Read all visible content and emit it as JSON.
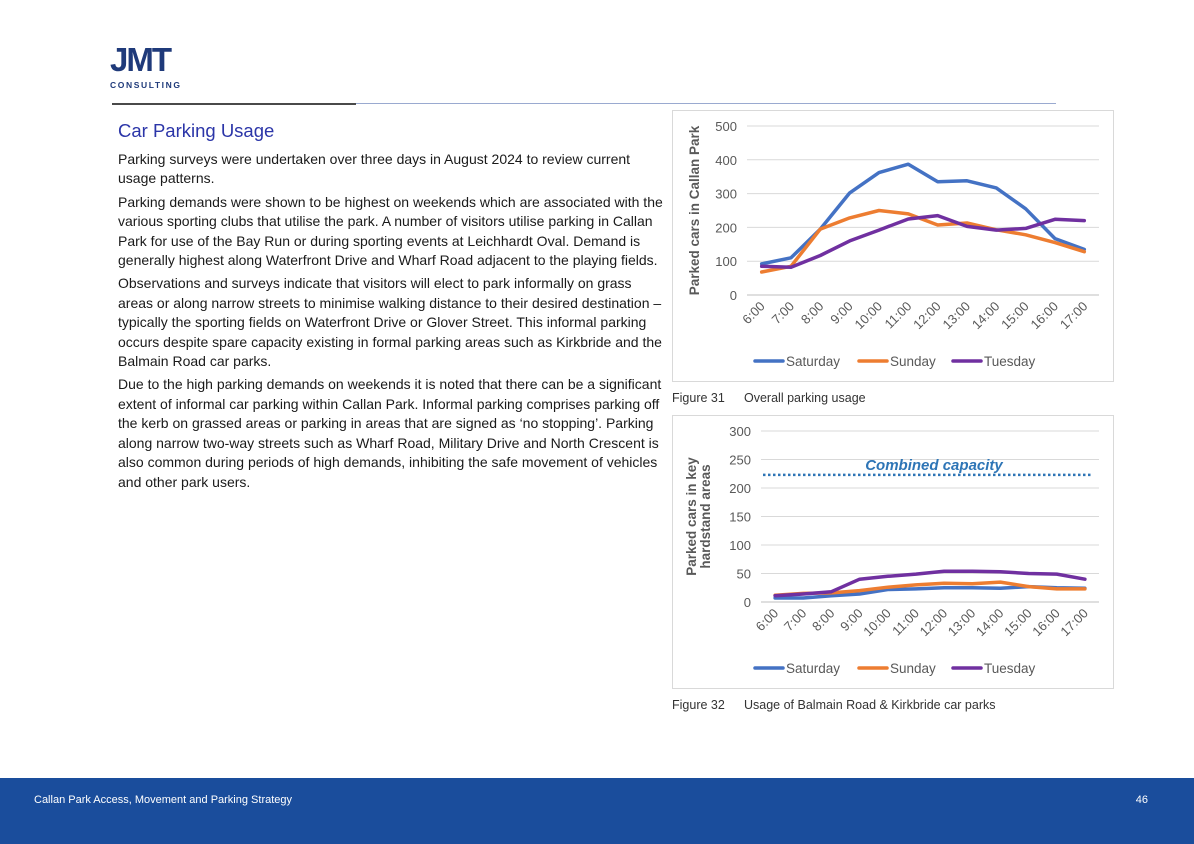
{
  "logo": {
    "letters": "JMT",
    "sub": "CONSULTING"
  },
  "section_title": "Car Parking Usage",
  "paragraphs": [
    "Parking surveys were undertaken over three days in August 2024 to review current usage patterns.",
    "Parking demands were shown to be highest on weekends which are associated with the various sporting clubs that utilise the park. A number of visitors utilise parking in Callan Park for use of the Bay Run or during sporting events at Leichhardt Oval. Demand is generally highest along Waterfront Drive and Wharf Road adjacent to the playing fields.",
    "Observations and surveys indicate that visitors will elect to park informally on grass areas or along narrow streets to minimise walking distance to their desired destination – typically the sporting fields on Waterfront Drive or Glover Street. This informal parking occurs despite spare capacity existing in formal parking areas such as Kirkbride and the Balmain Road car parks.",
    "Due to the high parking demands on weekends it is noted that there can be a significant extent of informal car parking within Callan Park. Informal parking comprises parking off the kerb on grassed areas or parking in areas that are signed as ‘no stopping’. Parking along narrow two-way streets such as Wharf Road, Military Drive and North Crescent is also common during periods of high demands, inhibiting the safe movement of vehicles and other park users."
  ],
  "figures": [
    {
      "number": "Figure 31",
      "caption": "Overall parking usage"
    },
    {
      "number": "Figure 32",
      "caption": "Usage of Balmain Road & Kirkbride car parks"
    }
  ],
  "footer": {
    "title": "Callan Park Access, Movement and Parking Strategy",
    "page": "46"
  },
  "chart_data": [
    {
      "type": "line",
      "title": "",
      "xlabel": "",
      "ylabel": "Parked cars in Callan Park",
      "ylim": [
        0,
        500
      ],
      "yticks": [
        0,
        100,
        200,
        300,
        400,
        500
      ],
      "categories": [
        "6:00",
        "7:00",
        "8:00",
        "9:00",
        "10:00",
        "11:00",
        "12:00",
        "13:00",
        "14:00",
        "15:00",
        "16:00",
        "17:00"
      ],
      "series": [
        {
          "name": "Saturday",
          "color": "#4472c4",
          "values": [
            92,
            110,
            195,
            302,
            362,
            387,
            335,
            338,
            317,
            255,
            167,
            135
          ]
        },
        {
          "name": "Sunday",
          "color": "#ed7d31",
          "values": [
            68,
            85,
            195,
            228,
            250,
            240,
            207,
            213,
            193,
            178,
            155,
            128
          ]
        },
        {
          "name": "Tuesday",
          "color": "#7030a0",
          "values": [
            85,
            82,
            117,
            160,
            192,
            225,
            235,
            203,
            192,
            197,
            224,
            220
          ]
        }
      ],
      "legend_position": "bottom"
    },
    {
      "type": "line",
      "title": "",
      "xlabel": "",
      "ylabel": "Parked cars in key hardstand areas",
      "ylim": [
        0,
        300
      ],
      "yticks": [
        0,
        50,
        100,
        150,
        200,
        250,
        300
      ],
      "categories": [
        "6:00",
        "7:00",
        "8:00",
        "9:00",
        "10:00",
        "11:00",
        "12:00",
        "13:00",
        "14:00",
        "15:00",
        "16:00",
        "17:00"
      ],
      "series": [
        {
          "name": "Saturday",
          "color": "#4472c4",
          "values": [
            7,
            7,
            11,
            14,
            22,
            23,
            25,
            25,
            24,
            27,
            25,
            24
          ]
        },
        {
          "name": "Sunday",
          "color": "#ed7d31",
          "values": [
            12,
            15,
            16,
            20,
            26,
            30,
            33,
            32,
            35,
            27,
            23,
            23
          ]
        },
        {
          "name": "Tuesday",
          "color": "#7030a0",
          "values": [
            11,
            14,
            18,
            40,
            45,
            49,
            54,
            54,
            53,
            50,
            49,
            40
          ]
        }
      ],
      "annotation": {
        "label": "Combined capacity",
        "value": 223,
        "color": "#2e75b6"
      },
      "legend_position": "bottom"
    }
  ]
}
